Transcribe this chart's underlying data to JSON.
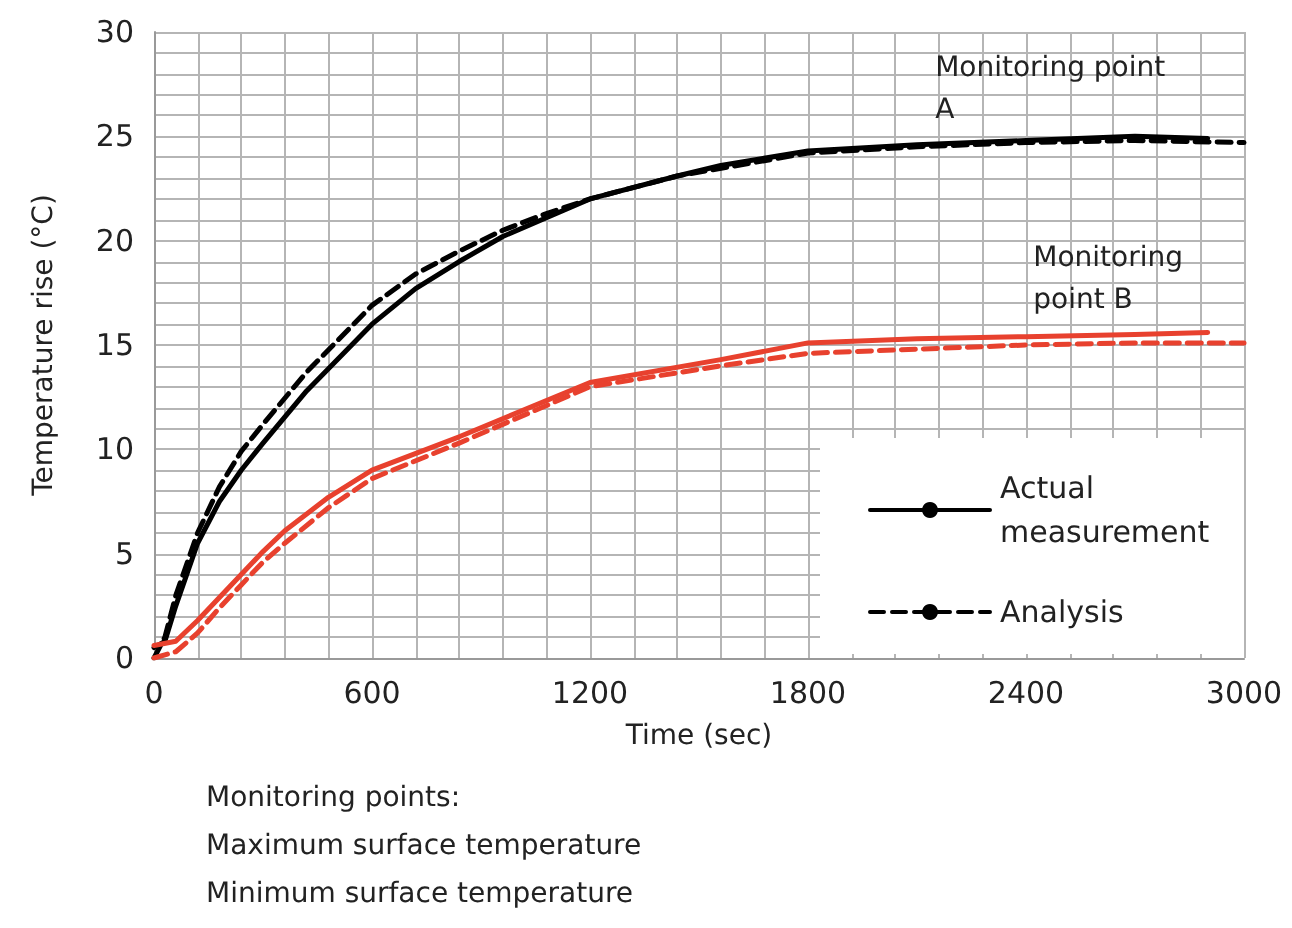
{
  "chart_data": {
    "type": "line",
    "xlabel": "Time (sec)",
    "ylabel": "Temperature rise (°C)",
    "xlim": [
      0,
      3000
    ],
    "xticks": [
      0,
      {
        "value": 120,
        "label": null
      },
      {
        "value": 240,
        "label": null
      },
      {
        "value": 360,
        "label": null
      },
      {
        "value": 480,
        "label": null
      },
      600,
      {
        "value": 720,
        "label": null
      },
      {
        "value": 840,
        "label": null
      },
      {
        "value": 960,
        "label": null
      },
      {
        "value": 1080,
        "label": null
      },
      1200,
      {
        "value": 1320,
        "label": null
      },
      {
        "value": 1440,
        "label": null
      },
      {
        "value": 1560,
        "label": null
      },
      {
        "value": 1680,
        "label": null
      },
      1800,
      {
        "value": 1920,
        "label": null
      },
      {
        "value": 2040,
        "label": null
      },
      {
        "value": 2160,
        "label": null
      },
      {
        "value": 2280,
        "label": null
      },
      2400,
      {
        "value": 2520,
        "label": null
      },
      {
        "value": 2640,
        "label": null
      },
      {
        "value": 2760,
        "label": null
      },
      {
        "value": 2880,
        "label": null
      },
      3000
    ],
    "ylim": [
      0,
      30
    ],
    "yticks": [
      0,
      {
        "value": 1,
        "label": null
      },
      {
        "value": 2,
        "label": null
      },
      {
        "value": 3,
        "label": null
      },
      {
        "value": 4,
        "label": null
      },
      5,
      {
        "value": 6,
        "label": null
      },
      {
        "value": 7,
        "label": null
      },
      {
        "value": 8,
        "label": null
      },
      {
        "value": 9,
        "label": null
      },
      10,
      {
        "value": 11,
        "label": null
      },
      {
        "value": 12,
        "label": null
      },
      {
        "value": 13,
        "label": null
      },
      {
        "value": 14,
        "label": null
      },
      15,
      {
        "value": 16,
        "label": null
      },
      {
        "value": 17,
        "label": null
      },
      {
        "value": 18,
        "label": null
      },
      {
        "value": 19,
        "label": null
      },
      20,
      {
        "value": 21,
        "label": null
      },
      {
        "value": 22,
        "label": null
      },
      {
        "value": 23,
        "label": null
      },
      {
        "value": 24,
        "label": null
      },
      25,
      {
        "value": 26,
        "label": null
      },
      {
        "value": 27,
        "label": null
      },
      {
        "value": 28,
        "label": null
      },
      {
        "value": 29,
        "label": null
      },
      30
    ],
    "grid": true,
    "legend": "bottom right",
    "marker": "none",
    "series": [
      {
        "name": "Actual measurement",
        "color": "#000000",
        "line_style": "solid",
        "x": [
          0,
          30,
          60,
          120,
          180,
          240,
          300,
          420,
          600,
          720,
          840,
          960,
          1080,
          1200,
          1440,
          1560,
          1800,
          2100,
          2400,
          2700,
          2900
        ],
        "values": [
          0.5,
          0.8,
          2.5,
          5.5,
          7.5,
          9.0,
          10.3,
          12.8,
          16.0,
          17.7,
          19.0,
          20.2,
          21.1,
          22.0,
          23.1,
          23.6,
          24.3,
          24.6,
          24.8,
          25.0,
          24.9
        ]
      },
      {
        "name": "Analysis",
        "color": "#000000",
        "line_style": "dashed",
        "x": [
          0,
          30,
          60,
          120,
          180,
          240,
          300,
          420,
          600,
          720,
          840,
          960,
          1080,
          1200,
          1440,
          1800,
          2100,
          2400,
          2700,
          3000
        ],
        "values": [
          0,
          1,
          3,
          6,
          8.2,
          9.9,
          11.2,
          13.7,
          16.9,
          18.4,
          19.5,
          20.5,
          21.3,
          22.0,
          23.1,
          24.2,
          24.5,
          24.7,
          24.8,
          24.7
        ]
      },
      {
        "color": "#e8412e",
        "line_style": "solid",
        "x": [
          0,
          60,
          120,
          180,
          240,
          300,
          360,
          480,
          600,
          840,
          1200,
          1560,
          1800,
          2100,
          2400,
          2700,
          2900
        ],
        "values": [
          0.6,
          0.8,
          1.8,
          2.9,
          4.0,
          5.1,
          6.1,
          7.7,
          9.0,
          10.6,
          13.2,
          14.3,
          15.1,
          15.3,
          15.4,
          15.5,
          15.6
        ]
      },
      {
        "color": "#e8412e",
        "line_style": "dashed",
        "x": [
          0,
          60,
          120,
          180,
          240,
          300,
          360,
          480,
          600,
          840,
          1200,
          1560,
          1800,
          2100,
          2400,
          2700,
          3000
        ],
        "values": [
          0,
          0.3,
          1.2,
          2.4,
          3.5,
          4.6,
          5.5,
          7.2,
          8.6,
          10.3,
          13.0,
          14.0,
          14.6,
          14.8,
          15.0,
          15.1,
          15.1
        ]
      }
    ],
    "annotations": [
      {
        "text": "Monitoring point A",
        "x": 2150,
        "y": 24.5
      },
      {
        "text": "Monitoring point B",
        "x": 2420,
        "y": 15.4
      },
      "Monitoring points:",
      "Maximum surface temperature",
      "Minimum surface temperature"
    ]
  }
}
